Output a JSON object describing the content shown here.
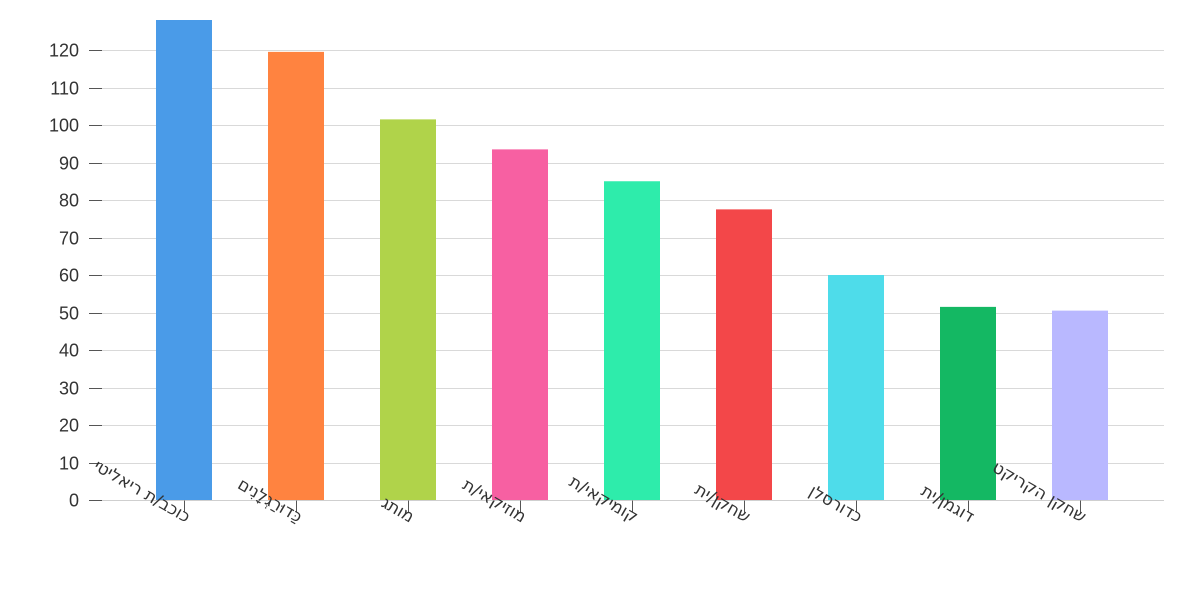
{
  "chart_data": {
    "type": "bar",
    "title": "",
    "xlabel": "",
    "ylabel": "",
    "categories": [
      "כוכב/ת ריאליטי",
      "כַּדוּרַגְלָנִים",
      "מותג",
      "מוזיקאי/ת",
      "קומיקאי/ת",
      "שחקן/ית",
      "כדורסלן",
      "דוגמן/ית",
      "שחקן הקריקט"
    ],
    "values": [
      128,
      119.5,
      101.5,
      93.5,
      85,
      77.5,
      60,
      51.5,
      50.5
    ],
    "colors": [
      "#4a9be8",
      "#ff8340",
      "#b0d34a",
      "#f760a2",
      "#2eecab",
      "#f34749",
      "#4edcea",
      "#14b863",
      "#b9b8ff"
    ],
    "ylim": [
      0,
      128
    ],
    "yticks": [
      0,
      10,
      20,
      30,
      40,
      50,
      60,
      70,
      80,
      90,
      100,
      110,
      120
    ],
    "grid": true,
    "legend": "none"
  }
}
